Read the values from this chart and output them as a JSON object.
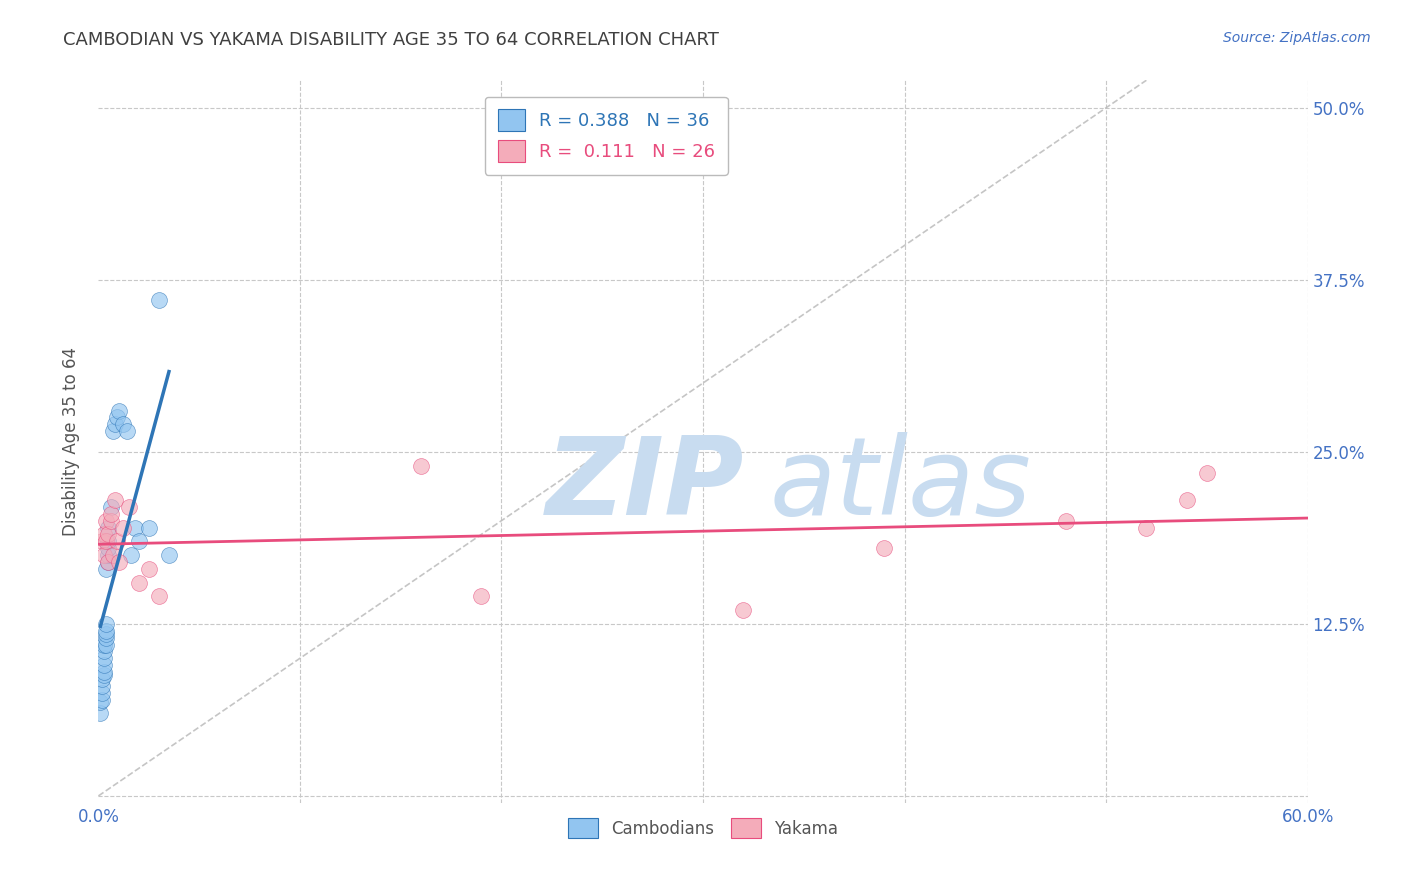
{
  "title": "CAMBODIAN VS YAKAMA DISABILITY AGE 35 TO 64 CORRELATION CHART",
  "source": "Source: ZipAtlas.com",
  "ylabel": "Disability Age 35 to 64",
  "xlim": [
    0.0,
    0.6
  ],
  "ylim": [
    -0.005,
    0.52
  ],
  "xtick_positions": [
    0.0,
    0.1,
    0.2,
    0.3,
    0.4,
    0.5,
    0.6
  ],
  "ytick_positions": [
    0.0,
    0.125,
    0.25,
    0.375,
    0.5
  ],
  "ytick_labels_right": [
    "",
    "12.5%",
    "25.0%",
    "37.5%",
    "50.0%"
  ],
  "cambodian_color": "#92C5F0",
  "yakama_color": "#F4ACBA",
  "cambodian_line_color": "#2E75B6",
  "yakama_line_color": "#E84C7D",
  "ref_line_color": "#BBBBBB",
  "background_color": "#FFFFFF",
  "grid_color": "#C8C8C8",
  "title_color": "#404040",
  "axis_label_color": "#555555",
  "tick_label_color": "#4472C4",
  "watermark_zip_color": "#C8DCF0",
  "watermark_atlas_color": "#C8DCF0",
  "marker_size": 130,
  "marker_alpha": 0.65,
  "cambodian_x": [
    0.001,
    0.001,
    0.002,
    0.002,
    0.002,
    0.002,
    0.003,
    0.003,
    0.003,
    0.003,
    0.003,
    0.003,
    0.004,
    0.004,
    0.004,
    0.004,
    0.004,
    0.004,
    0.005,
    0.005,
    0.005,
    0.005,
    0.005,
    0.006,
    0.007,
    0.008,
    0.009,
    0.01,
    0.012,
    0.014,
    0.016,
    0.018,
    0.02,
    0.025,
    0.03,
    0.035
  ],
  "cambodian_y": [
    0.06,
    0.068,
    0.07,
    0.075,
    0.08,
    0.085,
    0.088,
    0.09,
    0.095,
    0.1,
    0.105,
    0.11,
    0.11,
    0.115,
    0.118,
    0.12,
    0.125,
    0.165,
    0.17,
    0.175,
    0.18,
    0.185,
    0.195,
    0.21,
    0.265,
    0.27,
    0.275,
    0.28,
    0.27,
    0.265,
    0.175,
    0.195,
    0.185,
    0.195,
    0.36,
    0.175
  ],
  "yakama_x": [
    0.002,
    0.003,
    0.003,
    0.004,
    0.004,
    0.005,
    0.005,
    0.006,
    0.006,
    0.007,
    0.008,
    0.009,
    0.01,
    0.012,
    0.015,
    0.02,
    0.025,
    0.03,
    0.16,
    0.19,
    0.32,
    0.39,
    0.48,
    0.52,
    0.54,
    0.55
  ],
  "yakama_y": [
    0.185,
    0.175,
    0.19,
    0.185,
    0.2,
    0.17,
    0.19,
    0.2,
    0.205,
    0.175,
    0.215,
    0.185,
    0.17,
    0.195,
    0.21,
    0.155,
    0.165,
    0.145,
    0.24,
    0.145,
    0.135,
    0.18,
    0.2,
    0.195,
    0.215,
    0.235
  ]
}
